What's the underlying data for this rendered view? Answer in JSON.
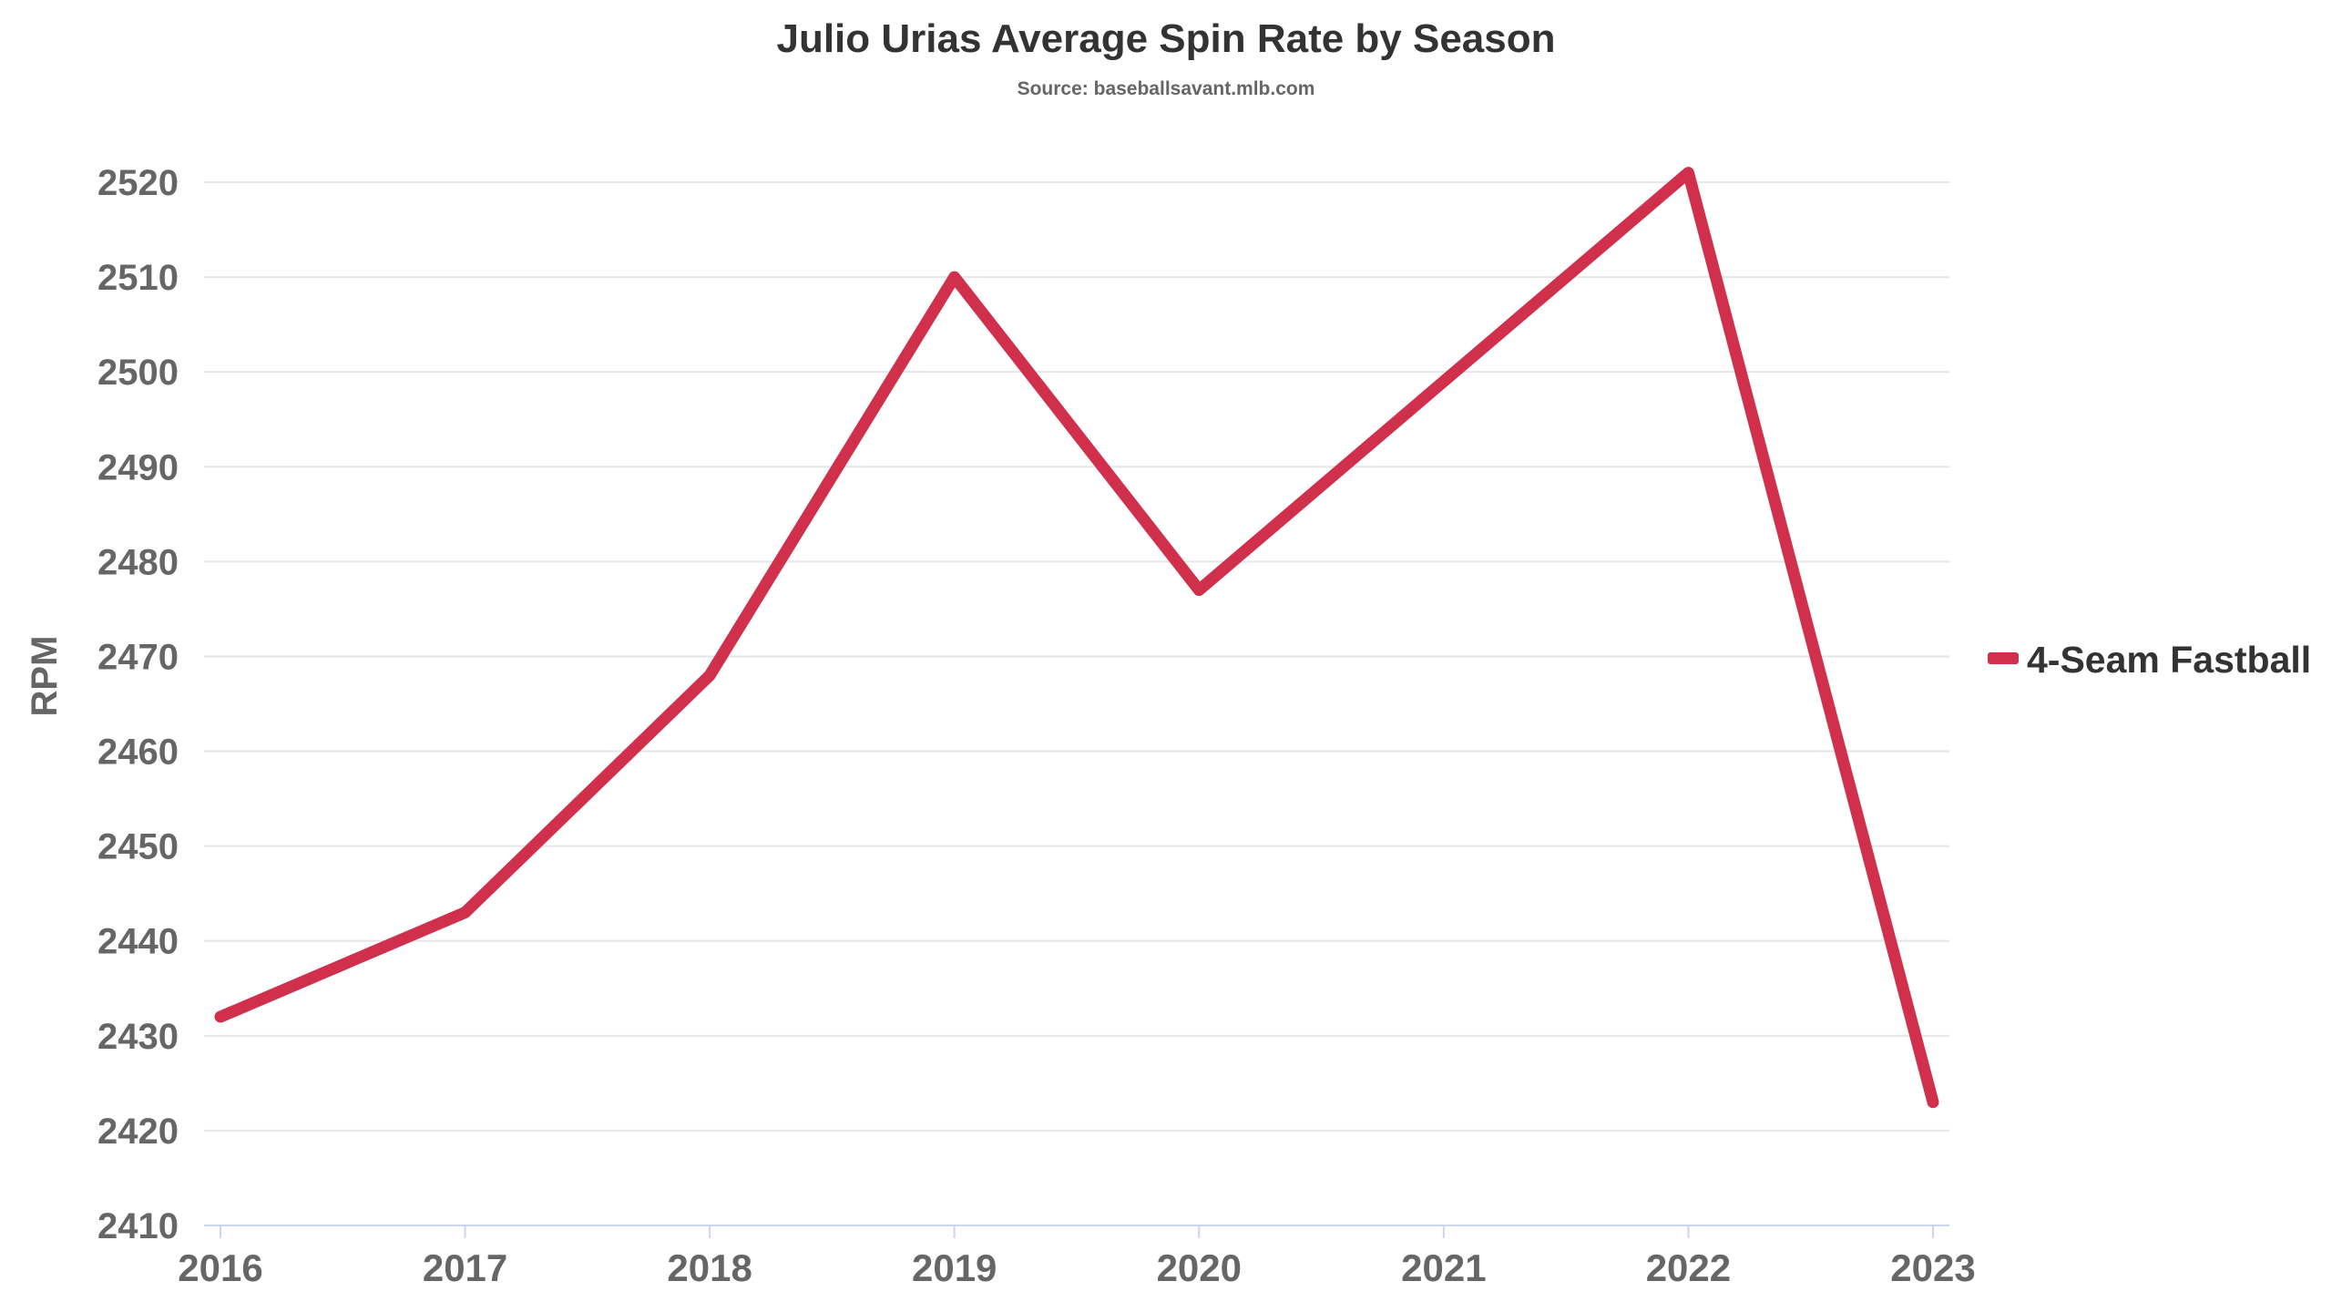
{
  "chart_data": {
    "type": "line",
    "title": "Julio Urias Average Spin Rate by Season",
    "subtitle": "Source: baseballsavant.mlb.com",
    "xlabel": "",
    "ylabel": "RPM",
    "categories": [
      "2016",
      "2017",
      "2018",
      "2019",
      "2020",
      "2021",
      "2022",
      "2023"
    ],
    "series": [
      {
        "name": "4-Seam Fastball",
        "color": "#d0304b",
        "values": [
          2432,
          2443,
          2468,
          2510,
          2477,
          2499,
          2521,
          2423
        ]
      }
    ],
    "ylim": [
      2410,
      2520
    ],
    "yticks": [
      2410,
      2420,
      2430,
      2440,
      2450,
      2460,
      2470,
      2480,
      2490,
      2500,
      2510,
      2520
    ],
    "grid": true,
    "legend_position": "right"
  }
}
